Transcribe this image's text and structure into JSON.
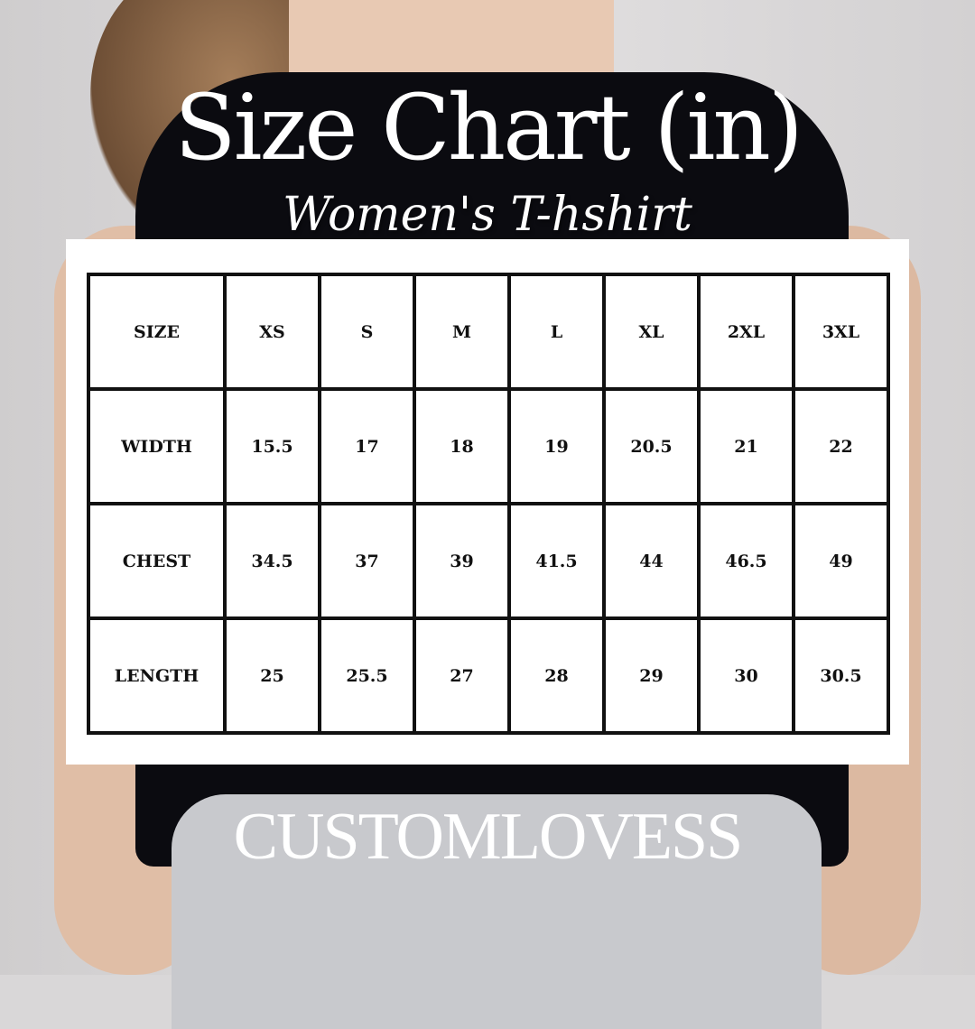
{
  "title": "Size Chart (in)",
  "subtitle": "Women's T-hshirt",
  "table": {
    "header": [
      "SIZE",
      "XS",
      "S",
      "M",
      "L",
      "XL",
      "2XL",
      "3XL"
    ],
    "rows": [
      [
        "WIDTH",
        "15.5",
        "17",
        "18",
        "19",
        "20.5",
        "21",
        "22"
      ],
      [
        "CHEST",
        "34.5",
        "37",
        "39",
        "41.5",
        "44",
        "46.5",
        "49"
      ],
      [
        "LENGTH",
        "25",
        "25.5",
        "27",
        "28",
        "29",
        "30",
        "30.5"
      ]
    ]
  },
  "brand": "CUSTOMLOVESS"
}
